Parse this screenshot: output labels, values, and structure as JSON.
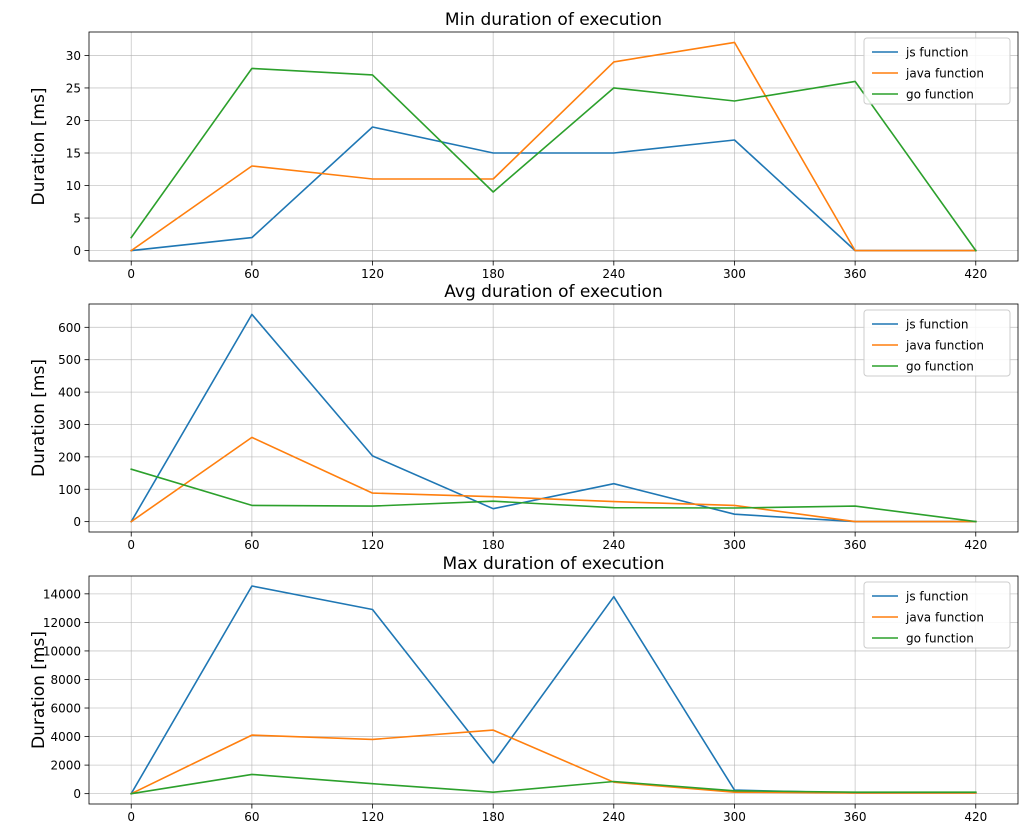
{
  "chart_data": [
    {
      "type": "line",
      "title": "Min duration of execution",
      "xlabel": "",
      "ylabel": "Duration [ms]",
      "x": [
        0,
        60,
        120,
        180,
        240,
        300,
        360,
        420
      ],
      "xticks": [
        "0",
        "60",
        "120",
        "180",
        "240",
        "300",
        "360",
        "420"
      ],
      "xlim": [
        -21,
        441
      ],
      "ylim": [
        -1.6,
        33.6
      ],
      "yticks": [
        0,
        5,
        10,
        15,
        20,
        25,
        30
      ],
      "ytick_labels": [
        "0",
        "5",
        "10",
        "15",
        "20",
        "25",
        "30"
      ],
      "grid": true,
      "legend": "top-right",
      "series": [
        {
          "name": "js function",
          "color": "#1f77b4",
          "values": [
            0,
            2,
            19,
            15,
            15,
            17,
            0,
            0
          ]
        },
        {
          "name": "java function",
          "color": "#ff7f0e",
          "values": [
            0,
            13,
            11,
            11,
            29,
            32,
            0,
            0
          ]
        },
        {
          "name": "go function",
          "color": "#2ca02c",
          "values": [
            2,
            28,
            27,
            9,
            25,
            23,
            26,
            0
          ]
        }
      ]
    },
    {
      "type": "line",
      "title": "Avg duration of execution",
      "xlabel": "",
      "ylabel": "Duration [ms]",
      "x": [
        0,
        60,
        120,
        180,
        240,
        300,
        360,
        420
      ],
      "xticks": [
        "0",
        "60",
        "120",
        "180",
        "240",
        "300",
        "360",
        "420"
      ],
      "xlim": [
        -21,
        441
      ],
      "ylim": [
        -32,
        672
      ],
      "yticks": [
        0,
        100,
        200,
        300,
        400,
        500,
        600
      ],
      "ytick_labels": [
        "0",
        "100",
        "200",
        "300",
        "400",
        "500",
        "600"
      ],
      "grid": true,
      "legend": "top-right",
      "series": [
        {
          "name": "js function",
          "color": "#1f77b4",
          "values": [
            0,
            640,
            203,
            40,
            117,
            23,
            0,
            0
          ]
        },
        {
          "name": "java function",
          "color": "#ff7f0e",
          "values": [
            0,
            260,
            88,
            77,
            62,
            50,
            0,
            0
          ]
        },
        {
          "name": "go function",
          "color": "#2ca02c",
          "values": [
            162,
            50,
            48,
            63,
            43,
            42,
            48,
            0
          ]
        }
      ]
    },
    {
      "type": "line",
      "title": "Max duration of execution",
      "xlabel": "",
      "ylabel": "Duration [ms]",
      "x": [
        0,
        60,
        120,
        180,
        240,
        300,
        360,
        420
      ],
      "xticks": [
        "0",
        "60",
        "120",
        "180",
        "240",
        "300",
        "360",
        "420"
      ],
      "xlim": [
        -21,
        441
      ],
      "ylim": [
        -725,
        15250
      ],
      "yticks": [
        0,
        2000,
        4000,
        6000,
        8000,
        10000,
        12000,
        14000
      ],
      "ytick_labels": [
        "0",
        "2000",
        "4000",
        "6000",
        "8000",
        "10000",
        "12000",
        "14000"
      ],
      "grid": true,
      "legend": "top-right",
      "series": [
        {
          "name": "js function",
          "color": "#1f77b4",
          "values": [
            0,
            14550,
            12900,
            2150,
            13800,
            250,
            50,
            50
          ]
        },
        {
          "name": "java function",
          "color": "#ff7f0e",
          "values": [
            0,
            4100,
            3800,
            4450,
            800,
            100,
            50,
            50
          ]
        },
        {
          "name": "go function",
          "color": "#2ca02c",
          "values": [
            0,
            1350,
            700,
            100,
            850,
            200,
            100,
            100
          ]
        }
      ]
    }
  ]
}
